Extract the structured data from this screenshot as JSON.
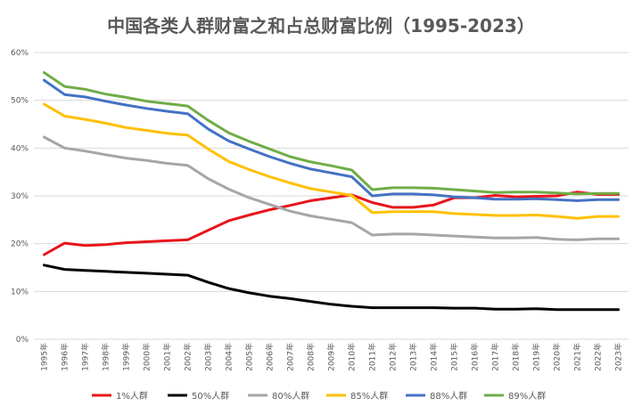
{
  "chart_data": {
    "type": "line",
    "title": "中国各类人群财富之和占总财富比例（1995-2023）",
    "xlabel": "",
    "ylabel": "",
    "ylim": [
      0,
      60
    ],
    "yticks": [
      "0%",
      "10%",
      "20%",
      "30%",
      "40%",
      "50%",
      "60%"
    ],
    "grid": true,
    "legend": "bottom",
    "categories": [
      "1995年",
      "1996年",
      "1997年",
      "1998年",
      "1999年",
      "2000年",
      "2001年",
      "2002年",
      "2003年",
      "2004年",
      "2005年",
      "2006年",
      "2007年",
      "2008年",
      "2009年",
      "2010年",
      "2011年",
      "2012年",
      "2013年",
      "2014年",
      "2015年",
      "2016年",
      "2017年",
      "2018年",
      "2019年",
      "2020年",
      "2021年",
      "2022年",
      "2023年"
    ],
    "series": [
      {
        "name": "1%人群",
        "color": "#e8141b",
        "values": [
          17.7,
          20.1,
          19.6,
          19.8,
          20.2,
          20.4,
          20.6,
          20.8,
          22.8,
          24.8,
          26.0,
          27.1,
          28.0,
          29.0,
          29.6,
          30.2,
          28.6,
          27.6,
          27.6,
          28.1,
          29.6,
          29.6,
          30.1,
          29.8,
          29.9,
          30.0,
          30.8,
          30.3,
          30.3
        ]
      },
      {
        "name": "50%人群",
        "color": "#000000",
        "values": [
          15.5,
          14.6,
          14.4,
          14.2,
          14.0,
          13.8,
          13.6,
          13.4,
          11.9,
          10.6,
          9.7,
          9.0,
          8.5,
          7.9,
          7.3,
          6.9,
          6.6,
          6.6,
          6.6,
          6.6,
          6.5,
          6.5,
          6.3,
          6.3,
          6.4,
          6.2,
          6.2,
          6.2,
          6.2
        ]
      },
      {
        "name": "80%人群",
        "color": "#a6a6a6",
        "values": [
          42.3,
          40.0,
          39.4,
          38.6,
          37.9,
          37.4,
          36.8,
          36.4,
          33.6,
          31.4,
          29.6,
          28.2,
          26.8,
          25.8,
          25.1,
          24.4,
          21.8,
          22.0,
          22.0,
          21.8,
          21.6,
          21.4,
          21.2,
          21.2,
          21.3,
          20.9,
          20.8,
          21.0,
          21.0
        ]
      },
      {
        "name": "85%人群",
        "color": "#ffc000",
        "values": [
          49.2,
          46.7,
          46.0,
          45.2,
          44.3,
          43.7,
          43.1,
          42.7,
          39.8,
          37.2,
          35.5,
          34.0,
          32.7,
          31.5,
          30.8,
          30.1,
          26.5,
          26.7,
          26.7,
          26.7,
          26.3,
          26.1,
          25.9,
          25.9,
          26.0,
          25.7,
          25.3,
          25.7,
          25.7
        ]
      },
      {
        "name": "88%人群",
        "color": "#4472c4",
        "values": [
          54.2,
          51.2,
          50.7,
          49.8,
          49.0,
          48.3,
          47.7,
          47.2,
          44.0,
          41.5,
          39.8,
          38.2,
          36.8,
          35.6,
          34.8,
          34.0,
          30.0,
          30.4,
          30.4,
          30.2,
          29.8,
          29.6,
          29.3,
          29.3,
          29.4,
          29.2,
          29.0,
          29.2,
          29.2
        ]
      },
      {
        "name": "89%人群",
        "color": "#70ad47",
        "values": [
          55.8,
          52.9,
          52.3,
          51.3,
          50.6,
          49.8,
          49.3,
          48.8,
          45.8,
          43.2,
          41.4,
          39.8,
          38.2,
          37.1,
          36.3,
          35.4,
          31.3,
          31.7,
          31.7,
          31.6,
          31.3,
          31.0,
          30.7,
          30.8,
          30.8,
          30.6,
          30.4,
          30.5,
          30.5
        ]
      }
    ]
  }
}
